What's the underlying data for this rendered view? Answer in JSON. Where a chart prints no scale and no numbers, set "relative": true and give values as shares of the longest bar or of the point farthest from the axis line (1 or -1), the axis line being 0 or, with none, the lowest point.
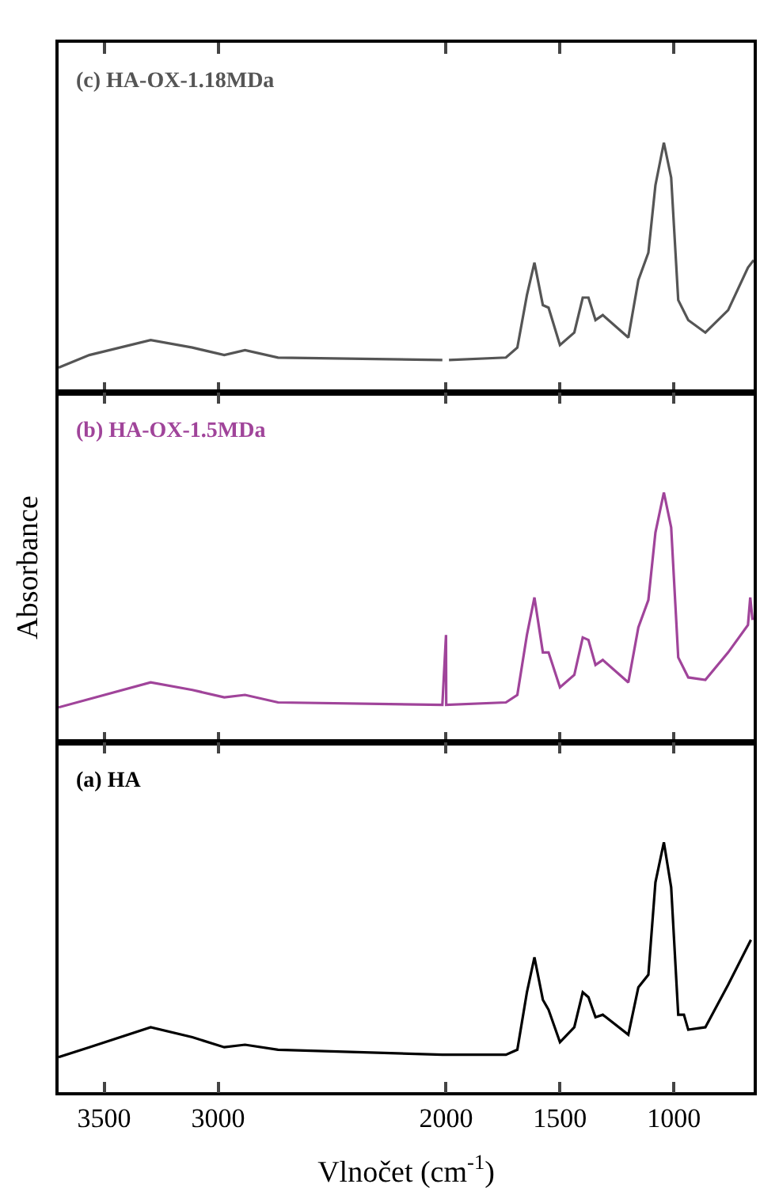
{
  "chart_data": [
    {
      "type": "line",
      "title": "(c) HA-OX-1.18MDa",
      "relative": true,
      "xlim": [
        3700,
        650
      ],
      "xticks": [
        3500,
        3000,
        2000,
        1500,
        1000
      ],
      "tick_labels": false,
      "x": [
        3700,
        3565,
        3296,
        3113,
        2973,
        2882,
        2737,
        2016,
        2000,
        1987,
        1737,
        1687,
        1645,
        1612,
        1575,
        1550,
        1500,
        1437,
        1400,
        1375,
        1344,
        1312,
        1200,
        1156,
        1112,
        1081,
        1044,
        1012,
        981,
        937,
        862,
        762,
        675,
        650
      ],
      "series": [
        {
          "color": "#555555",
          "values": [
            0.1,
            0.15,
            0.21,
            0.18,
            0.15,
            0.17,
            0.14,
            0.13,
            null,
            0.13,
            0.14,
            0.18,
            0.39,
            0.52,
            0.35,
            0.34,
            0.19,
            0.24,
            0.38,
            0.38,
            0.29,
            0.31,
            0.22,
            0.45,
            0.56,
            0.83,
            1,
            0.86,
            0.37,
            0.29,
            0.24,
            0.33,
            0.5,
            0.53
          ]
        }
      ]
    },
    {
      "type": "line",
      "title": "(b) HA-OX-1.5MDa",
      "ylabel": "Absorbance",
      "relative": true,
      "xlim": [
        3700,
        650
      ],
      "xticks": [
        3500,
        3000,
        2000,
        1500,
        1000
      ],
      "tick_labels": false,
      "x": [
        3700,
        3296,
        3113,
        2973,
        2882,
        2737,
        2016,
        2000,
        1999,
        1737,
        1687,
        1645,
        1612,
        1575,
        1550,
        1500,
        1437,
        1400,
        1375,
        1344,
        1312,
        1200,
        1156,
        1112,
        1081,
        1044,
        1012,
        981,
        937,
        862,
        762,
        675,
        665,
        655
      ],
      "series": [
        {
          "color": "#a0449a",
          "values": [
            0.14,
            0.24,
            0.21,
            0.18,
            0.19,
            0.16,
            0.15,
            0.43,
            0.15,
            0.16,
            0.19,
            0.43,
            0.58,
            0.36,
            0.36,
            0.22,
            0.27,
            0.42,
            0.41,
            0.31,
            0.33,
            0.24,
            0.46,
            0.57,
            0.84,
            1,
            0.86,
            0.34,
            0.26,
            0.25,
            0.36,
            0.47,
            0.58,
            0.49
          ]
        }
      ]
    },
    {
      "type": "line",
      "title": "(a) HA",
      "xlabel": "Vlnočet (cm$^{-1}$)",
      "relative": true,
      "xlim": [
        3700,
        650
      ],
      "xticks": [
        3500,
        3000,
        2000,
        1500,
        1000
      ],
      "tick_labels": "x",
      "x": [
        3700,
        3565,
        3296,
        3113,
        2973,
        2882,
        2737,
        2016,
        1737,
        1687,
        1645,
        1612,
        1575,
        1550,
        1500,
        1437,
        1400,
        1375,
        1344,
        1312,
        1200,
        1156,
        1112,
        1081,
        1044,
        1012,
        981,
        956,
        937,
        862,
        762,
        662
      ],
      "series": [
        {
          "color": "#000000",
          "values": [
            0.14,
            0.18,
            0.26,
            0.22,
            0.18,
            0.19,
            0.17,
            0.15,
            0.15,
            0.17,
            0.4,
            0.54,
            0.37,
            0.33,
            0.2,
            0.26,
            0.4,
            0.38,
            0.3,
            0.31,
            0.23,
            0.42,
            0.47,
            0.84,
            1,
            0.82,
            0.31,
            0.31,
            0.25,
            0.26,
            0.43,
            0.61
          ]
        }
      ]
    }
  ]
}
